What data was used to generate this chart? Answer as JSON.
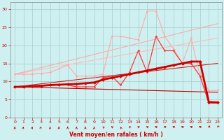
{
  "background_color": "#cff0f0",
  "grid_color": "#aacccc",
  "xlabel": "Vent moyen/en rafales ( km/h )",
  "xlim": [
    -0.5,
    23.5
  ],
  "ylim": [
    0,
    32
  ],
  "yticks": [
    0,
    5,
    10,
    15,
    20,
    25,
    30
  ],
  "xticks": [
    0,
    1,
    2,
    3,
    4,
    5,
    6,
    7,
    8,
    9,
    10,
    11,
    12,
    13,
    14,
    15,
    16,
    17,
    18,
    19,
    20,
    21,
    22,
    23
  ],
  "series": [
    {
      "x": [
        0,
        23
      ],
      "y": [
        8.5,
        7.0
      ],
      "color": "#bb0000",
      "lw": 0.8,
      "marker": null,
      "zorder": 2
    },
    {
      "x": [
        0,
        23
      ],
      "y": [
        8.5,
        15.0
      ],
      "color": "#cc2222",
      "lw": 0.8,
      "marker": null,
      "zorder": 2
    },
    {
      "x": [
        0,
        23
      ],
      "y": [
        12.0,
        22.0
      ],
      "color": "#ffbbbb",
      "lw": 0.8,
      "marker": null,
      "zorder": 2
    },
    {
      "x": [
        0,
        23
      ],
      "y": [
        12.0,
        26.0
      ],
      "color": "#ffaaaa",
      "lw": 0.8,
      "marker": null,
      "zorder": 2
    },
    {
      "x": [
        0,
        1,
        2,
        3,
        4,
        5,
        6,
        7,
        8,
        9,
        10,
        11,
        12,
        13,
        14,
        15,
        16,
        17,
        18,
        19,
        20,
        21,
        22,
        23
      ],
      "y": [
        12.0,
        12.0,
        12.0,
        12.2,
        12.5,
        13.5,
        14.5,
        11.5,
        11.5,
        11.5,
        12.0,
        22.5,
        22.5,
        22.0,
        21.5,
        29.5,
        29.5,
        22.5,
        19.0,
        15.0,
        22.0,
        11.5,
        7.5,
        7.5
      ],
      "color": "#ffaaaa",
      "lw": 0.8,
      "marker": "D",
      "ms": 1.5,
      "zorder": 3
    },
    {
      "x": [
        0,
        1,
        2,
        3,
        4,
        5,
        6,
        7,
        8,
        9,
        10,
        11,
        12,
        13,
        14,
        15,
        16,
        17,
        18,
        19,
        20,
        21,
        22,
        23
      ],
      "y": [
        8.5,
        8.5,
        8.7,
        8.8,
        9.0,
        9.1,
        9.0,
        8.5,
        8.5,
        8.5,
        11.0,
        11.5,
        9.0,
        12.5,
        18.5,
        12.5,
        22.5,
        18.5,
        18.5,
        15.0,
        15.0,
        11.5,
        4.0,
        4.0
      ],
      "color": "#ff3333",
      "lw": 0.9,
      "marker": "D",
      "ms": 1.5,
      "zorder": 4
    },
    {
      "x": [
        0,
        1,
        2,
        3,
        4,
        5,
        6,
        7,
        8,
        9,
        10,
        11,
        12,
        13,
        14,
        15,
        16,
        17,
        18,
        19,
        20,
        21,
        22,
        23
      ],
      "y": [
        8.5,
        8.5,
        8.7,
        8.8,
        9.0,
        9.1,
        9.2,
        9.3,
        9.5,
        9.7,
        10.5,
        11.0,
        11.5,
        12.0,
        12.5,
        13.0,
        13.5,
        14.0,
        14.5,
        15.0,
        15.5,
        15.5,
        4.3,
        4.2
      ],
      "color": "#cc0000",
      "lw": 2.0,
      "marker": "D",
      "ms": 2.0,
      "zorder": 5
    }
  ],
  "wind_arrows": {
    "x": [
      0,
      1,
      2,
      3,
      4,
      5,
      6,
      7,
      8,
      9,
      10,
      11,
      12,
      13,
      14,
      15,
      16,
      17,
      18,
      19,
      20,
      21,
      22,
      23
    ],
    "angles_deg": [
      0,
      10,
      10,
      15,
      0,
      0,
      0,
      0,
      0,
      0,
      -30,
      -40,
      -10,
      -40,
      -45,
      -45,
      -50,
      -50,
      -50,
      -55,
      -55,
      -55,
      -135,
      -145
    ]
  }
}
